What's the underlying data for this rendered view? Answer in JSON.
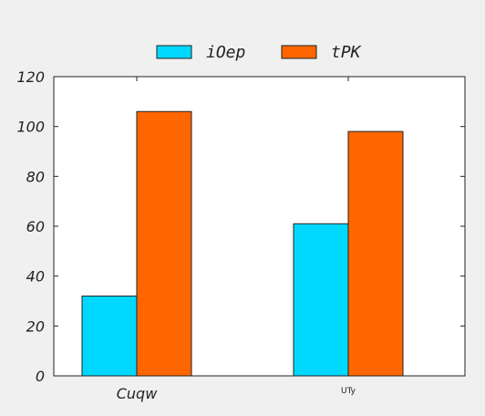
{
  "chart_data": {
    "type": "bar",
    "categories": [
      "Cuqw",
      "UTy"
    ],
    "series": [
      {
        "name": "iOep",
        "color": "#00d8ff",
        "values": [
          32,
          61
        ]
      },
      {
        "name": "tPK",
        "color": "#ff6600",
        "values": [
          106,
          98
        ]
      }
    ],
    "ylim": [
      0,
      120
    ],
    "yticks": [
      0,
      20,
      40,
      60,
      80,
      100,
      120
    ],
    "xlabel": "",
    "ylabel": "",
    "title": "",
    "grid": false,
    "legend": "top-center"
  }
}
